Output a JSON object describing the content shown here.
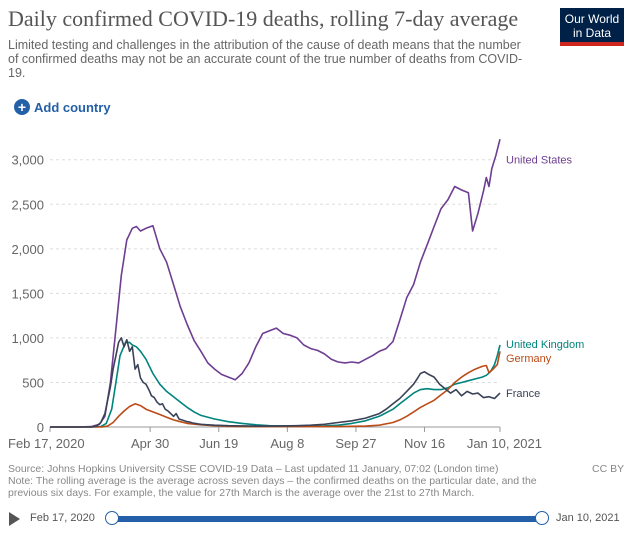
{
  "header": {
    "title": "Daily confirmed COVID-19 deaths, rolling 7-day average",
    "subtitle": "Limited testing and challenges in the attribution of the cause of death means that the number of confirmed deaths may not be an accurate count of the true number of deaths from COVID-19.",
    "logo_line1": "Our World",
    "logo_line2": "in Data"
  },
  "controls": {
    "add_country_label": "Add country"
  },
  "chart_data": {
    "type": "line",
    "title": "Daily confirmed COVID-19 deaths, rolling 7-day average",
    "xlabel": "",
    "ylabel": "",
    "ylim": [
      0,
      3300
    ],
    "xlim_days": [
      0,
      328
    ],
    "y_ticks": [
      0,
      500,
      1000,
      1500,
      2000,
      2500,
      3000
    ],
    "y_tick_labels": [
      "0",
      "500",
      "1,000",
      "1,500",
      "2,000",
      "2,500",
      "3,000"
    ],
    "x_ticks": [
      0,
      73,
      123,
      173,
      223,
      273,
      328
    ],
    "x_tick_labels": [
      "Feb 17, 2020",
      "Apr 30",
      "Jun 19",
      "Aug 8",
      "Sep 27",
      "Nov 16",
      "Jan 10, 2021"
    ],
    "grid": true,
    "series": [
      {
        "name": "United States",
        "color": "#6d3e91",
        "x": [
          0,
          20,
          30,
          36,
          40,
          44,
          48,
          52,
          56,
          60,
          63,
          66,
          70,
          75,
          80,
          85,
          90,
          95,
          100,
          105,
          110,
          115,
          120,
          125,
          130,
          135,
          140,
          145,
          150,
          155,
          160,
          165,
          170,
          175,
          180,
          185,
          190,
          195,
          200,
          205,
          210,
          215,
          220,
          225,
          230,
          235,
          240,
          245,
          250,
          255,
          260,
          265,
          270,
          275,
          280,
          285,
          290,
          295,
          300,
          305,
          308,
          312,
          316,
          318,
          320,
          322,
          325,
          328
        ],
        "values": [
          0,
          0,
          5,
          30,
          120,
          500,
          1100,
          1700,
          2100,
          2230,
          2250,
          2200,
          2230,
          2260,
          2000,
          1850,
          1600,
          1350,
          1150,
          970,
          850,
          720,
          650,
          590,
          560,
          530,
          600,
          720,
          900,
          1050,
          1080,
          1110,
          1050,
          1030,
          1000,
          920,
          880,
          860,
          820,
          760,
          730,
          720,
          730,
          720,
          760,
          800,
          850,
          880,
          960,
          1200,
          1450,
          1600,
          1850,
          2050,
          2250,
          2450,
          2550,
          2700,
          2660,
          2630,
          2200,
          2400,
          2650,
          2800,
          2700,
          2900,
          3050,
          3230
        ]
      },
      {
        "name": "United Kingdom",
        "color": "#00847e",
        "x": [
          0,
          30,
          37,
          41,
          45,
          48,
          51,
          55,
          58,
          60,
          63,
          66,
          70,
          75,
          80,
          85,
          90,
          95,
          100,
          105,
          110,
          120,
          130,
          140,
          150,
          160,
          170,
          180,
          190,
          200,
          210,
          220,
          230,
          240,
          250,
          255,
          260,
          265,
          270,
          275,
          280,
          285,
          290,
          295,
          300,
          305,
          310,
          315,
          318,
          321,
          324,
          326,
          328
        ],
        "values": [
          0,
          0,
          5,
          40,
          200,
          500,
          800,
          950,
          950,
          920,
          900,
          850,
          760,
          600,
          480,
          400,
          340,
          280,
          220,
          170,
          130,
          90,
          60,
          40,
          25,
          15,
          12,
          10,
          10,
          12,
          20,
          40,
          70,
          120,
          200,
          260,
          320,
          380,
          420,
          430,
          420,
          420,
          440,
          480,
          500,
          520,
          540,
          560,
          580,
          620,
          700,
          800,
          920
        ]
      },
      {
        "name": "Germany",
        "color": "#bc4b16",
        "x": [
          0,
          38,
          42,
          46,
          50,
          54,
          58,
          62,
          66,
          70,
          75,
          80,
          85,
          90,
          95,
          100,
          110,
          120,
          130,
          140,
          150,
          160,
          170,
          180,
          190,
          200,
          210,
          220,
          230,
          240,
          250,
          255,
          260,
          265,
          270,
          275,
          280,
          285,
          290,
          295,
          300,
          305,
          310,
          315,
          318,
          320,
          323,
          326,
          328
        ],
        "values": [
          0,
          0,
          10,
          50,
          120,
          180,
          230,
          260,
          240,
          200,
          170,
          140,
          110,
          80,
          60,
          40,
          25,
          15,
          8,
          5,
          5,
          5,
          5,
          5,
          5,
          5,
          5,
          8,
          10,
          20,
          50,
          80,
          120,
          170,
          220,
          260,
          300,
          360,
          420,
          500,
          560,
          610,
          650,
          680,
          690,
          610,
          650,
          700,
          850
        ]
      },
      {
        "name": "France",
        "color": "#3a4257",
        "x": [
          0,
          30,
          34,
          37,
          40,
          42,
          44,
          46,
          48,
          50,
          52,
          54,
          56,
          58,
          60,
          62,
          64,
          66,
          68,
          70,
          72,
          74,
          76,
          78,
          80,
          82,
          84,
          86,
          88,
          90,
          92,
          94,
          96,
          98,
          100,
          102,
          104,
          106,
          108,
          110,
          115,
          120,
          125,
          130,
          140,
          150,
          160,
          170,
          180,
          190,
          200,
          210,
          220,
          230,
          240,
          245,
          250,
          255,
          260,
          265,
          268,
          270,
          273,
          276,
          280,
          284,
          288,
          292,
          296,
          300,
          304,
          308,
          312,
          316,
          320,
          324,
          328
        ],
        "values": [
          0,
          0,
          10,
          50,
          150,
          300,
          450,
          650,
          800,
          950,
          1000,
          900,
          980,
          850,
          900,
          650,
          700,
          550,
          500,
          480,
          420,
          350,
          330,
          280,
          250,
          260,
          200,
          180,
          150,
          120,
          150,
          90,
          80,
          70,
          60,
          55,
          45,
          40,
          35,
          30,
          25,
          20,
          18,
          15,
          12,
          10,
          10,
          12,
          15,
          20,
          30,
          50,
          70,
          100,
          150,
          200,
          260,
          320,
          400,
          480,
          550,
          600,
          620,
          590,
          560,
          480,
          430,
          380,
          420,
          350,
          400,
          370,
          380,
          330,
          340,
          320,
          380
        ]
      }
    ]
  },
  "footer": {
    "source": "Source: Johns Hopkins University CSSE COVID-19 Data – Last updated 11 January, 07:02 (London time)",
    "note": "Note: The rolling average is the average across seven days – the confirmed deaths on the particular date, and the previous six days. For example, the value for 27th March is the average over the 21st to 27th March.",
    "license": "CC BY"
  },
  "timeline": {
    "start_label": "Feb 17, 2020",
    "end_label": "Jan 10, 2021",
    "start_fraction": 0,
    "end_fraction": 1
  }
}
